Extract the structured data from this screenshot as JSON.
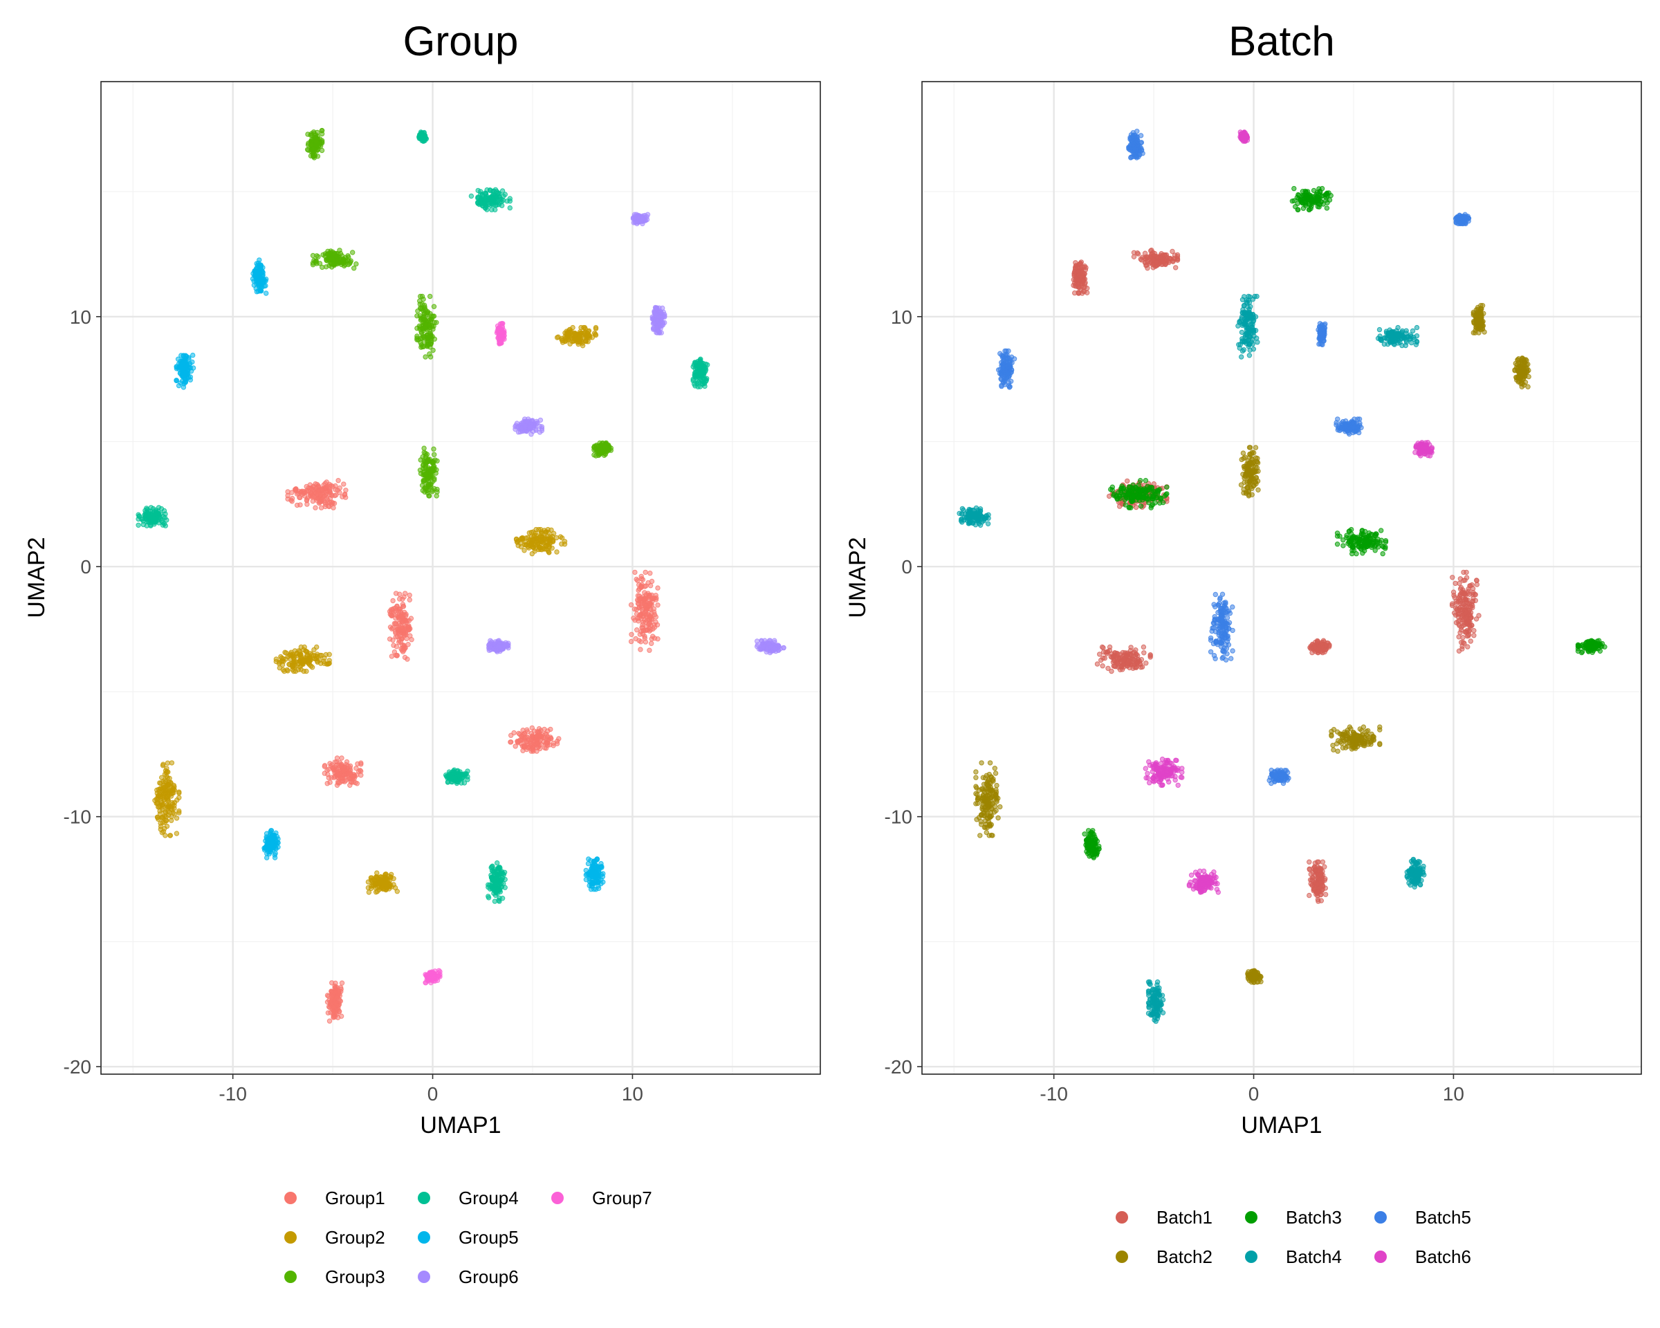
{
  "chart_data": [
    {
      "type": "scatter",
      "title": "Group",
      "xlabel": "UMAP1",
      "ylabel": "UMAP2",
      "xlim": [
        -16.6,
        19.4
      ],
      "ylim": [
        -20.3,
        19.4
      ],
      "x_ticks": [
        -10,
        0,
        10
      ],
      "x_tick_labels": [
        "-10",
        "0",
        "10"
      ],
      "y_ticks": [
        -20,
        -10,
        0,
        10
      ],
      "y_tick_labels": [
        "-20",
        "-10",
        "0",
        "10"
      ],
      "grid": true,
      "legend_position": "bottom",
      "legend": [
        "Group1",
        "Group2",
        "Group3",
        "Group4",
        "Group5",
        "Group6",
        "Group7"
      ],
      "colors": [
        "#F8766D",
        "#C49A00",
        "#53B400",
        "#00C094",
        "#00B6EB",
        "#A58AFF",
        "#FB61D7"
      ],
      "series": [
        {
          "name": "Group1",
          "clusters": [
            {
              "x": -5.8,
              "y": 2.9,
              "sx": 1.2,
              "sy": 0.45
            },
            {
              "x": -1.6,
              "y": -2.4,
              "sx": 0.45,
              "sy": 1.1
            },
            {
              "x": 10.6,
              "y": -1.8,
              "sx": 0.55,
              "sy": 1.3
            },
            {
              "x": -4.5,
              "y": -8.2,
              "sx": 0.75,
              "sy": 0.45
            },
            {
              "x": 5.1,
              "y": -6.9,
              "sx": 1.0,
              "sy": 0.4
            },
            {
              "x": -4.9,
              "y": -17.4,
              "sx": 0.3,
              "sy": 0.65
            }
          ]
        },
        {
          "name": "Group2",
          "clusters": [
            {
              "x": 7.2,
              "y": 9.2,
              "sx": 0.8,
              "sy": 0.3
            },
            {
              "x": 5.4,
              "y": 1.0,
              "sx": 1.0,
              "sy": 0.4
            },
            {
              "x": -6.5,
              "y": -3.7,
              "sx": 1.1,
              "sy": 0.4
            },
            {
              "x": -13.3,
              "y": -9.3,
              "sx": 0.5,
              "sy": 1.2
            },
            {
              "x": -2.5,
              "y": -12.6,
              "sx": 0.6,
              "sy": 0.35
            }
          ]
        },
        {
          "name": "Group3",
          "clusters": [
            {
              "x": -5.9,
              "y": 16.9,
              "sx": 0.3,
              "sy": 0.45
            },
            {
              "x": -4.9,
              "y": 12.3,
              "sx": 0.9,
              "sy": 0.3
            },
            {
              "x": -0.3,
              "y": 9.6,
              "sx": 0.4,
              "sy": 1.0
            },
            {
              "x": -0.2,
              "y": 3.8,
              "sx": 0.35,
              "sy": 0.8
            },
            {
              "x": 8.5,
              "y": 4.7,
              "sx": 0.35,
              "sy": 0.22
            }
          ]
        },
        {
          "name": "Group4",
          "clusters": [
            {
              "x": -0.5,
              "y": 17.2,
              "sx": 0.15,
              "sy": 0.15
            },
            {
              "x": 2.9,
              "y": 14.7,
              "sx": 0.8,
              "sy": 0.35
            },
            {
              "x": 13.4,
              "y": 7.8,
              "sx": 0.3,
              "sy": 0.5
            },
            {
              "x": -14.0,
              "y": 2.0,
              "sx": 0.6,
              "sy": 0.3
            },
            {
              "x": 1.2,
              "y": -8.4,
              "sx": 0.45,
              "sy": 0.22
            },
            {
              "x": 3.2,
              "y": -12.6,
              "sx": 0.35,
              "sy": 0.65
            }
          ]
        },
        {
          "name": "Group5",
          "clusters": [
            {
              "x": -8.7,
              "y": 11.6,
              "sx": 0.3,
              "sy": 0.55
            },
            {
              "x": -12.4,
              "y": 7.9,
              "sx": 0.35,
              "sy": 0.6
            },
            {
              "x": -8.1,
              "y": -11.1,
              "sx": 0.3,
              "sy": 0.45
            },
            {
              "x": 8.1,
              "y": -12.3,
              "sx": 0.35,
              "sy": 0.5
            }
          ]
        },
        {
          "name": "Group6",
          "clusters": [
            {
              "x": 11.3,
              "y": 9.9,
              "sx": 0.25,
              "sy": 0.45
            },
            {
              "x": 4.8,
              "y": 5.6,
              "sx": 0.55,
              "sy": 0.25
            },
            {
              "x": 3.3,
              "y": -3.2,
              "sx": 0.4,
              "sy": 0.2
            },
            {
              "x": 16.9,
              "y": -3.2,
              "sx": 0.55,
              "sy": 0.2
            },
            {
              "x": 10.4,
              "y": 13.9,
              "sx": 0.3,
              "sy": 0.15
            }
          ]
        },
        {
          "name": "Group7",
          "clusters": [
            {
              "x": 3.4,
              "y": 9.3,
              "sx": 0.15,
              "sy": 0.35
            },
            {
              "x": 0.0,
              "y": -16.4,
              "sx": 0.3,
              "sy": 0.2
            }
          ]
        }
      ]
    },
    {
      "type": "scatter",
      "title": "Batch",
      "xlabel": "UMAP1",
      "ylabel": "UMAP2",
      "xlim": [
        -16.6,
        19.4
      ],
      "ylim": [
        -20.3,
        19.4
      ],
      "x_ticks": [
        -10,
        0,
        10
      ],
      "x_tick_labels": [
        "-10",
        "0",
        "10"
      ],
      "y_ticks": [
        -20,
        -10,
        0,
        10
      ],
      "y_tick_labels": [
        "-20",
        "-10",
        "0",
        "10"
      ],
      "grid": true,
      "legend_position": "bottom",
      "legend": [
        "Batch1",
        "Batch2",
        "Batch3",
        "Batch4",
        "Batch5",
        "Batch6"
      ],
      "colors": [
        "#D55E55",
        "#9C8500",
        "#009E00",
        "#00A0A8",
        "#3B7FE6",
        "#E043C8"
      ],
      "series": [
        {
          "name": "Batch1",
          "clusters": [
            {
              "x": -5.8,
              "y": 2.9,
              "sx": 1.2,
              "sy": 0.45
            },
            {
              "x": -4.9,
              "y": 12.3,
              "sx": 0.9,
              "sy": 0.3
            },
            {
              "x": -8.7,
              "y": 11.6,
              "sx": 0.3,
              "sy": 0.55
            },
            {
              "x": 10.6,
              "y": -1.8,
              "sx": 0.55,
              "sy": 1.3
            },
            {
              "x": -6.5,
              "y": -3.7,
              "sx": 1.1,
              "sy": 0.4
            },
            {
              "x": 3.3,
              "y": -3.2,
              "sx": 0.4,
              "sy": 0.2
            },
            {
              "x": 3.2,
              "y": -12.6,
              "sx": 0.35,
              "sy": 0.65
            }
          ]
        },
        {
          "name": "Batch2",
          "clusters": [
            {
              "x": 11.3,
              "y": 9.9,
              "sx": 0.25,
              "sy": 0.45
            },
            {
              "x": 13.4,
              "y": 7.8,
              "sx": 0.3,
              "sy": 0.5
            },
            {
              "x": -0.2,
              "y": 3.8,
              "sx": 0.35,
              "sy": 0.8
            },
            {
              "x": 5.1,
              "y": -6.9,
              "sx": 1.0,
              "sy": 0.4
            },
            {
              "x": -13.3,
              "y": -9.3,
              "sx": 0.5,
              "sy": 1.2
            },
            {
              "x": 0.0,
              "y": -16.4,
              "sx": 0.3,
              "sy": 0.2
            }
          ]
        },
        {
          "name": "Batch3",
          "clusters": [
            {
              "x": 2.9,
              "y": 14.7,
              "sx": 0.8,
              "sy": 0.35
            },
            {
              "x": -5.8,
              "y": 2.9,
              "sx": 1.2,
              "sy": 0.45
            },
            {
              "x": 5.4,
              "y": 1.0,
              "sx": 1.0,
              "sy": 0.4
            },
            {
              "x": 16.9,
              "y": -3.2,
              "sx": 0.55,
              "sy": 0.2
            },
            {
              "x": -8.1,
              "y": -11.1,
              "sx": 0.3,
              "sy": 0.45
            }
          ]
        },
        {
          "name": "Batch4",
          "clusters": [
            {
              "x": -0.3,
              "y": 9.6,
              "sx": 0.4,
              "sy": 1.0
            },
            {
              "x": 7.2,
              "y": 9.2,
              "sx": 0.8,
              "sy": 0.3
            },
            {
              "x": -14.0,
              "y": 2.0,
              "sx": 0.6,
              "sy": 0.3
            },
            {
              "x": 8.1,
              "y": -12.3,
              "sx": 0.35,
              "sy": 0.5
            },
            {
              "x": -4.9,
              "y": -17.4,
              "sx": 0.3,
              "sy": 0.65
            }
          ]
        },
        {
          "name": "Batch5",
          "clusters": [
            {
              "x": -5.9,
              "y": 16.9,
              "sx": 0.3,
              "sy": 0.45
            },
            {
              "x": 10.4,
              "y": 13.9,
              "sx": 0.3,
              "sy": 0.15
            },
            {
              "x": -12.4,
              "y": 7.9,
              "sx": 0.35,
              "sy": 0.6
            },
            {
              "x": 3.4,
              "y": 9.3,
              "sx": 0.15,
              "sy": 0.35
            },
            {
              "x": 4.8,
              "y": 5.6,
              "sx": 0.55,
              "sy": 0.25
            },
            {
              "x": -1.6,
              "y": -2.4,
              "sx": 0.45,
              "sy": 1.1
            },
            {
              "x": 1.2,
              "y": -8.4,
              "sx": 0.45,
              "sy": 0.22
            }
          ]
        },
        {
          "name": "Batch6",
          "clusters": [
            {
              "x": -0.5,
              "y": 17.2,
              "sx": 0.15,
              "sy": 0.15
            },
            {
              "x": 8.5,
              "y": 4.7,
              "sx": 0.35,
              "sy": 0.22
            },
            {
              "x": -4.5,
              "y": -8.2,
              "sx": 0.75,
              "sy": 0.45
            },
            {
              "x": -2.5,
              "y": -12.6,
              "sx": 0.6,
              "sy": 0.35
            }
          ]
        }
      ]
    }
  ]
}
